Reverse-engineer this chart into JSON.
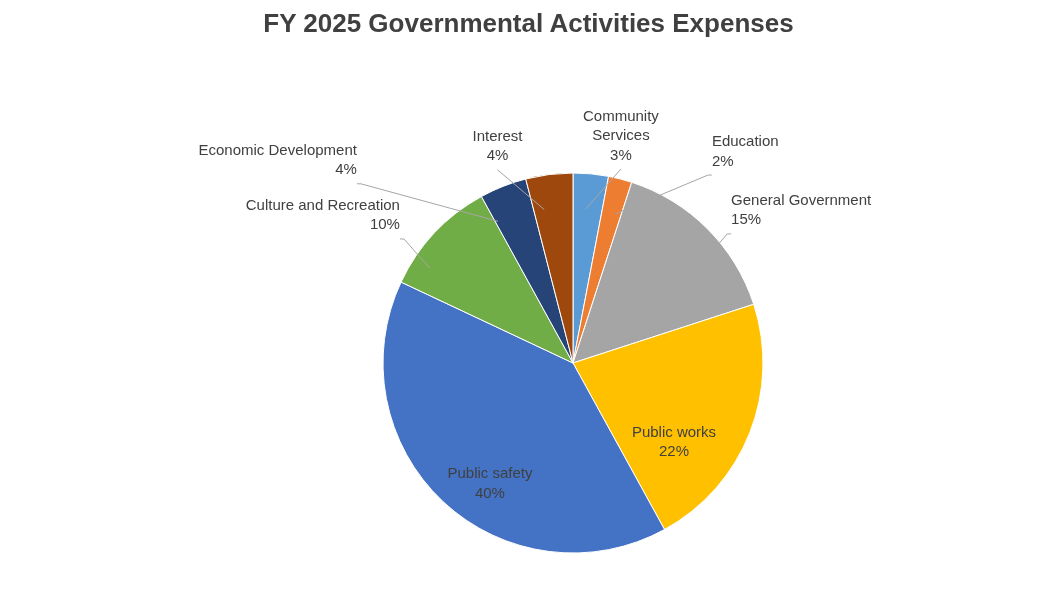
{
  "chart_data": {
    "type": "pie",
    "title": "FY 2025 Governmental Activities Expenses",
    "categories": [
      "Community Services",
      "Education",
      "General Government",
      "Public works",
      "Public safety",
      "Culture and Recreation",
      "Economic Development",
      "Interest"
    ],
    "values": [
      3,
      2,
      15,
      22,
      40,
      10,
      4,
      4
    ],
    "value_labels": [
      "3%",
      "2%",
      "15%",
      "22%",
      "40%",
      "10%",
      "4%",
      "4%"
    ],
    "colors": [
      "#5b9bd5",
      "#ed7d31",
      "#a5a5a5",
      "#ffc000",
      "#4472c4",
      "#70ad47",
      "#264478",
      "#9e480e"
    ]
  }
}
